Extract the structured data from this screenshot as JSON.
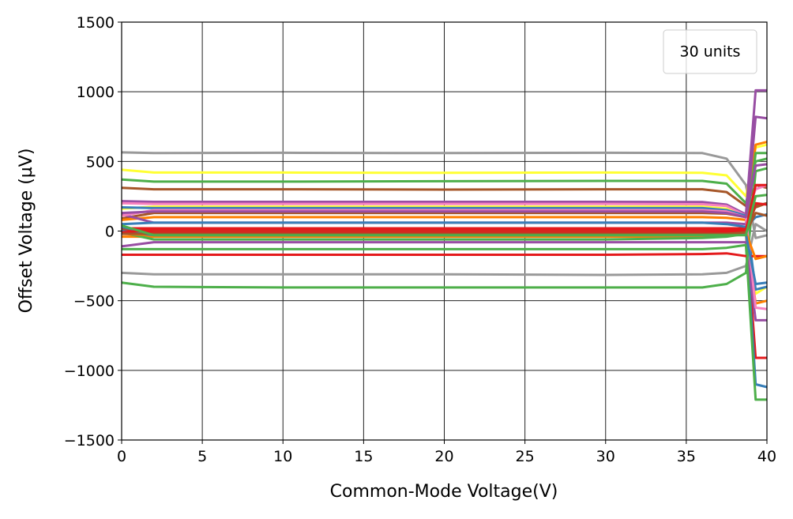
{
  "chart_data": {
    "type": "line",
    "title": "",
    "xlabel": "Common-Mode Voltage(V)",
    "ylabel": "Offset Voltage (µV)",
    "xlim": [
      0,
      40
    ],
    "ylim": [
      -1500,
      1500
    ],
    "xticks": [
      0,
      5,
      10,
      15,
      20,
      25,
      30,
      35,
      40
    ],
    "yticks": [
      -1500,
      -1000,
      -500,
      0,
      500,
      1000,
      1500
    ],
    "ytick_labels": [
      "−1500",
      "−1000",
      "−500",
      "0",
      "500",
      "1000",
      "1500"
    ],
    "grid": true,
    "legend": {
      "text": "30 units",
      "placement": "top-right"
    },
    "x": [
      0,
      2,
      10,
      20,
      30,
      36,
      37.5,
      38.7,
      39.3,
      40
    ],
    "series": [
      {
        "color": "#999999",
        "values": [
          565,
          560,
          562,
          560,
          562,
          560,
          520,
          330,
          -50,
          -30
        ]
      },
      {
        "color": "#ffff33",
        "values": [
          440,
          420,
          420,
          418,
          420,
          418,
          400,
          250,
          600,
          620
        ]
      },
      {
        "color": "#4daf4a",
        "values": [
          370,
          355,
          355,
          358,
          360,
          360,
          340,
          200,
          500,
          520
        ]
      },
      {
        "color": "#a65628",
        "values": [
          310,
          300,
          300,
          298,
          300,
          300,
          280,
          180,
          330,
          310
        ]
      },
      {
        "color": "#984ea3",
        "values": [
          215,
          210,
          210,
          210,
          210,
          208,
          190,
          120,
          1010,
          1010
        ]
      },
      {
        "color": "#f781bf",
        "values": [
          200,
          195,
          195,
          195,
          195,
          193,
          180,
          110,
          300,
          330
        ]
      },
      {
        "color": "#ffff33",
        "values": [
          160,
          175,
          175,
          175,
          175,
          175,
          160,
          100,
          -450,
          -400
        ]
      },
      {
        "color": "#377eb8",
        "values": [
          170,
          165,
          165,
          165,
          165,
          165,
          150,
          110,
          -420,
          -400
        ]
      },
      {
        "color": "#a65628",
        "values": [
          90,
          130,
          130,
          130,
          130,
          130,
          125,
          100,
          170,
          200
        ]
      },
      {
        "color": "#ff7f00",
        "values": [
          80,
          100,
          100,
          100,
          100,
          100,
          95,
          80,
          620,
          640
        ]
      },
      {
        "color": "#984ea3",
        "values": [
          120,
          60,
          60,
          60,
          60,
          60,
          60,
          50,
          820,
          810
        ]
      },
      {
        "color": "#e41a1c",
        "values": [
          20,
          20,
          20,
          20,
          20,
          20,
          20,
          20,
          -910,
          -910
        ]
      },
      {
        "color": "#a65628",
        "values": [
          10,
          0,
          0,
          0,
          0,
          0,
          0,
          0,
          180,
          200
        ]
      },
      {
        "color": "#377eb8",
        "values": [
          30,
          -20,
          -20,
          -20,
          -20,
          -20,
          -20,
          -10,
          -1100,
          -1120
        ]
      },
      {
        "color": "#ff7f00",
        "values": [
          -40,
          -40,
          -40,
          -40,
          -40,
          -40,
          -35,
          -20,
          -520,
          -500
        ]
      },
      {
        "color": "#4daf4a",
        "values": [
          -10,
          -60,
          -60,
          -60,
          -60,
          -50,
          -40,
          -20,
          560,
          560
        ]
      },
      {
        "color": "#984ea3",
        "values": [
          -110,
          -80,
          -80,
          -80,
          -80,
          -80,
          -80,
          -80,
          -640,
          -640
        ]
      },
      {
        "color": "#4daf4a",
        "values": [
          -130,
          -130,
          -130,
          -130,
          -130,
          -130,
          -120,
          -100,
          -1210,
          -1210
        ]
      },
      {
        "color": "#e41a1c",
        "values": [
          -170,
          -170,
          -170,
          -170,
          -170,
          -165,
          -160,
          -180,
          -180,
          -180
        ]
      },
      {
        "color": "#999999",
        "values": [
          -300,
          -310,
          -310,
          -310,
          -315,
          -310,
          -300,
          -250,
          50,
          0
        ]
      },
      {
        "color": "#4daf4a",
        "values": [
          -370,
          -400,
          -405,
          -405,
          -405,
          -405,
          -380,
          -300,
          430,
          450
        ]
      },
      {
        "color": "#377eb8",
        "values": [
          50,
          60,
          60,
          60,
          60,
          60,
          50,
          30,
          100,
          120
        ]
      },
      {
        "color": "#e41a1c",
        "values": [
          0,
          -10,
          -10,
          -10,
          -10,
          -10,
          -5,
          0,
          200,
          190
        ]
      },
      {
        "color": "#f781bf",
        "values": [
          110,
          150,
          150,
          150,
          150,
          150,
          140,
          100,
          -550,
          -560
        ]
      },
      {
        "color": "#ff7f00",
        "values": [
          -20,
          -30,
          -30,
          -30,
          -30,
          -30,
          -25,
          -10,
          -200,
          -180
        ]
      },
      {
        "color": "#984ea3",
        "values": [
          130,
          140,
          140,
          140,
          140,
          140,
          130,
          100,
          470,
          480
        ]
      },
      {
        "color": "#377eb8",
        "values": [
          0,
          -30,
          -30,
          -30,
          -30,
          -30,
          -30,
          -20,
          -380,
          -370
        ]
      },
      {
        "color": "#e41a1c",
        "values": [
          -10,
          10,
          10,
          10,
          10,
          10,
          10,
          10,
          330,
          330
        ]
      },
      {
        "color": "#a65628",
        "values": [
          -20,
          -20,
          -20,
          -20,
          -20,
          -20,
          -20,
          -10,
          130,
          110
        ]
      },
      {
        "color": "#4daf4a",
        "values": [
          40,
          -30,
          -30,
          -30,
          -30,
          -30,
          -30,
          -30,
          250,
          260
        ]
      }
    ]
  }
}
